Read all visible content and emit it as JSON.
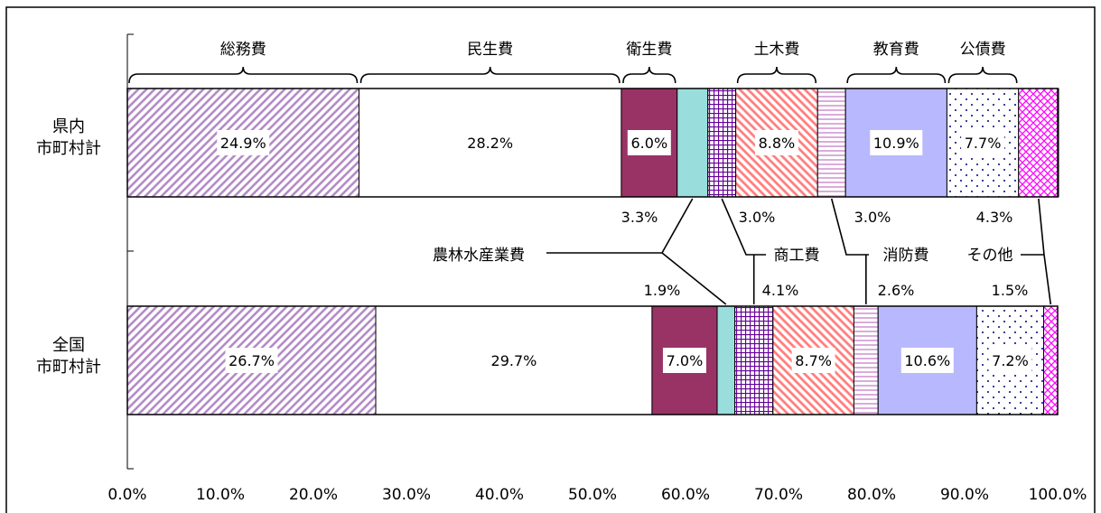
{
  "chart_data": {
    "type": "bar",
    "orientation": "horizontal",
    "stacked": "percent",
    "categories": [
      "県内\n市町村計",
      "全国\n市町村計"
    ],
    "series": [
      {
        "name": "総務費",
        "values": [
          24.9,
          26.7
        ],
        "labels": [
          "24.9%",
          "26.7%"
        ],
        "color": "#b48cc8",
        "pattern": "diag-fwd"
      },
      {
        "name": "民生費",
        "values": [
          28.2,
          29.7
        ],
        "labels": [
          "28.2%",
          "29.7%"
        ],
        "color": "#ffffff",
        "pattern": "solid"
      },
      {
        "name": "衛生費",
        "values": [
          6.0,
          7.0
        ],
        "labels": [
          "6.0%",
          "7.0%"
        ],
        "color": "#993366",
        "pattern": "solid"
      },
      {
        "name": "農林水産業費",
        "values": [
          3.3,
          1.9
        ],
        "labels": [
          "3.3%",
          "1.9%"
        ],
        "color": "#99dddd",
        "pattern": "solid"
      },
      {
        "name": "商工費",
        "values": [
          3.0,
          4.1
        ],
        "labels": [
          "3.0%",
          "4.1%"
        ],
        "color": "#660099",
        "pattern": "grid"
      },
      {
        "name": "土木費",
        "values": [
          8.8,
          8.7
        ],
        "labels": [
          "8.8%",
          "8.7%"
        ],
        "color": "#ff8080",
        "pattern": "diag-back"
      },
      {
        "name": "消防費",
        "values": [
          3.0,
          2.6
        ],
        "labels": [
          "3.0%",
          "2.6%"
        ],
        "color": "#cc88cc",
        "pattern": "hlines"
      },
      {
        "name": "教育費",
        "values": [
          10.9,
          10.6
        ],
        "labels": [
          "10.9%",
          "10.6%"
        ],
        "color": "#b8b8ff",
        "pattern": "solid"
      },
      {
        "name": "公債費",
        "values": [
          7.7,
          7.2
        ],
        "labels": [
          "7.7%",
          "7.2%"
        ],
        "color": "#000080",
        "pattern": "dots"
      },
      {
        "name": "その他",
        "values": [
          4.3,
          1.5
        ],
        "labels": [
          "4.3%",
          "1.5%"
        ],
        "color": "#ff00ff",
        "pattern": "cross"
      }
    ],
    "xlim": [
      0,
      100
    ],
    "xticks": [
      "0.0%",
      "10.0%",
      "20.0%",
      "30.0%",
      "40.0%",
      "50.0%",
      "60.0%",
      "70.0%",
      "80.0%",
      "90.0%",
      "100.0%"
    ],
    "xlabel": "",
    "ylabel": "",
    "title": "",
    "grid": false,
    "legend": "none"
  }
}
